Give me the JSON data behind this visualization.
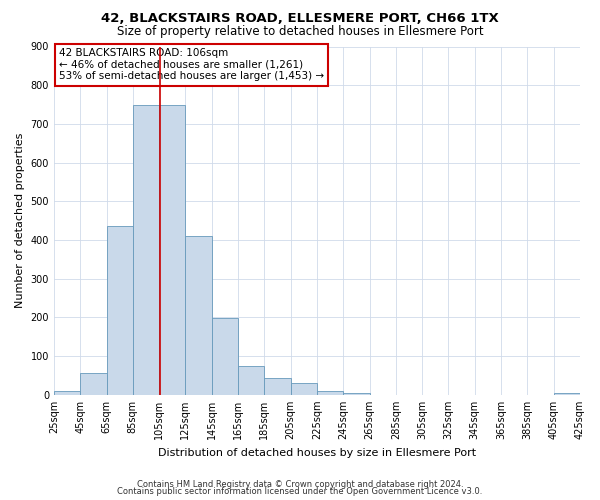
{
  "title": "42, BLACKSTAIRS ROAD, ELLESMERE PORT, CH66 1TX",
  "subtitle": "Size of property relative to detached houses in Ellesmere Port",
  "xlabel": "Distribution of detached houses by size in Ellesmere Port",
  "ylabel": "Number of detached properties",
  "footer_line1": "Contains HM Land Registry data © Crown copyright and database right 2024.",
  "footer_line2": "Contains public sector information licensed under the Open Government Licence v3.0.",
  "annotation_title": "42 BLACKSTAIRS ROAD: 106sqm",
  "annotation_line2": "← 46% of detached houses are smaller (1,261)",
  "annotation_line3": "53% of semi-detached houses are larger (1,453) →",
  "bar_color": "#c9d9ea",
  "bar_edge_color": "#6699bb",
  "vline_color": "#cc0000",
  "vline_x": 106,
  "bin_edges": [
    25,
    45,
    65,
    85,
    105,
    125,
    145,
    165,
    185,
    205,
    225,
    245,
    265,
    285,
    305,
    325,
    345,
    365,
    385,
    405,
    425
  ],
  "bar_heights": [
    10,
    57,
    437,
    750,
    750,
    410,
    198,
    75,
    43,
    30,
    10,
    5,
    0,
    0,
    0,
    0,
    0,
    0,
    0,
    5
  ],
  "ylim": [
    0,
    900
  ],
  "yticks": [
    0,
    100,
    200,
    300,
    400,
    500,
    600,
    700,
    800,
    900
  ],
  "bg_color": "#ffffff",
  "grid_color": "#d0daea",
  "annotation_box_color": "#ffffff",
  "annotation_box_edge": "#cc0000",
  "title_fontsize": 9.5,
  "subtitle_fontsize": 8.5,
  "xlabel_fontsize": 8,
  "ylabel_fontsize": 8,
  "annotation_fontsize": 7.5,
  "tick_fontsize": 7,
  "footer_fontsize": 6
}
